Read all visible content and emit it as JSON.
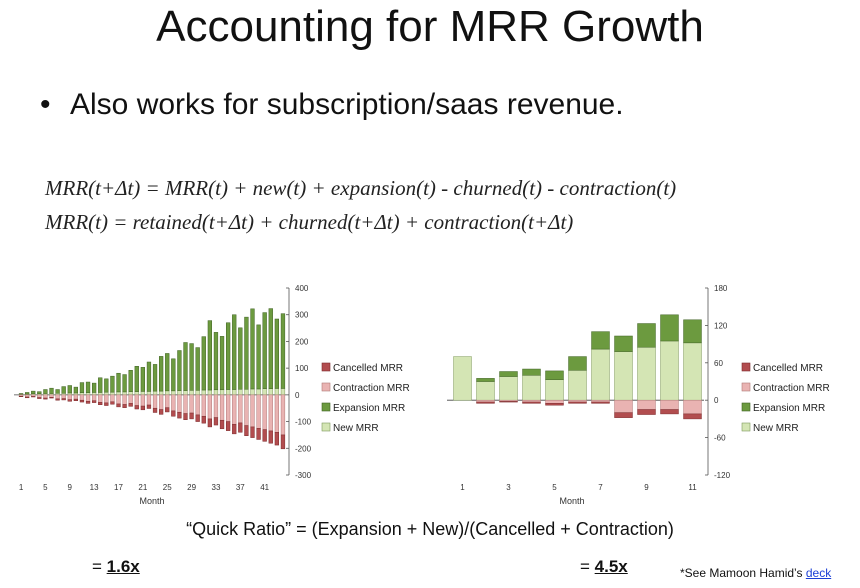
{
  "title": "Accounting for MRR Growth",
  "bullet": {
    "marker": "•",
    "text": "Also works for subscription/saas revenue."
  },
  "formulas": [
    "MRR(t+Δt) = MRR(t) + new(t) + expansion(t) - churned(t) - contraction(t)",
    "MRR(t) = retained(t+Δt) + churned(t+Δt) + contraction(t+Δt)"
  ],
  "quick_ratio_text": "“Quick Ratio” = (Expansion + New)/(Cancelled + Contraction)",
  "ratio_left": {
    "prefix": "= ",
    "value": "1.6x"
  },
  "ratio_right": {
    "prefix": "= ",
    "value": "4.5x"
  },
  "footnote": {
    "text": "*See Mamoon Hamid’s ",
    "link": "deck"
  },
  "colors": {
    "cancelled": "#b24d4f",
    "contraction": "#e9b3b2",
    "expansion": "#6c9a3f",
    "new": "#d4e5b4"
  },
  "chart_data": [
    {
      "type": "bar",
      "stacked": true,
      "xlabel": "Month",
      "ylabel": "",
      "ylim": [
        -300,
        400
      ],
      "yticks": [
        400,
        300,
        200,
        100,
        0,
        -100,
        -200,
        -300
      ],
      "xticks": [
        "1",
        "5",
        "9",
        "13",
        "17",
        "21",
        "25",
        "29",
        "33",
        "37",
        "41"
      ],
      "legend": [
        "Cancelled MRR",
        "Contraction MRR",
        "Expansion MRR",
        "New MRR"
      ],
      "legend_position": "right",
      "x": [
        1,
        2,
        3,
        4,
        5,
        6,
        7,
        8,
        9,
        10,
        11,
        12,
        13,
        14,
        15,
        16,
        17,
        18,
        19,
        20,
        21,
        22,
        23,
        24,
        25,
        26,
        27,
        28,
        29,
        30,
        31,
        32,
        33,
        34,
        35,
        36,
        37,
        38,
        39,
        40,
        41,
        42,
        43,
        44
      ],
      "series": [
        {
          "name": "New MRR",
          "values": [
            3,
            3,
            4,
            4,
            5,
            5,
            6,
            6,
            7,
            7,
            8,
            8,
            9,
            9,
            10,
            10,
            11,
            11,
            12,
            12,
            13,
            13,
            14,
            14,
            15,
            15,
            16,
            16,
            17,
            17,
            18,
            18,
            19,
            19,
            20,
            20,
            21,
            21,
            22,
            22,
            23,
            23,
            24,
            24
          ]
        },
        {
          "name": "Expansion MRR",
          "values": [
            2,
            6,
            10,
            8,
            15,
            20,
            14,
            25,
            28,
            22,
            38,
            40,
            35,
            55,
            50,
            60,
            70,
            65,
            80,
            95,
            90,
            110,
            100,
            130,
            140,
            120,
            150,
            180,
            175,
            160,
            200,
            260,
            215,
            200,
            250,
            280,
            230,
            270,
            300,
            240,
            285,
            300,
            260,
            280
          ]
        },
        {
          "name": "Contraction MRR",
          "values": [
            -5,
            -8,
            -6,
            -10,
            -12,
            -9,
            -15,
            -14,
            -18,
            -16,
            -20,
            -24,
            -22,
            -28,
            -30,
            -26,
            -34,
            -36,
            -32,
            -40,
            -42,
            -38,
            -50,
            -55,
            -48,
            -60,
            -65,
            -70,
            -68,
            -75,
            -80,
            -90,
            -85,
            -95,
            -100,
            -110,
            -105,
            -115,
            -120,
            -125,
            -130,
            -135,
            -140,
            -150
          ]
        },
        {
          "name": "Cancelled MRR",
          "values": [
            -2,
            -3,
            -2,
            -4,
            -4,
            -3,
            -5,
            -5,
            -6,
            -6,
            -7,
            -8,
            -7,
            -9,
            -10,
            -9,
            -11,
            -12,
            -11,
            -13,
            -14,
            -13,
            -16,
            -18,
            -16,
            -20,
            -22,
            -23,
            -22,
            -25,
            -26,
            -30,
            -28,
            -32,
            -34,
            -36,
            -35,
            -38,
            -40,
            -42,
            -44,
            -46,
            -48,
            -52
          ]
        }
      ]
    },
    {
      "type": "bar",
      "stacked": true,
      "xlabel": "Month",
      "ylabel": "",
      "ylim": [
        -120,
        180
      ],
      "yticks": [
        180,
        120,
        60,
        0,
        -60,
        -120
      ],
      "xticks": [
        "1",
        "3",
        "5",
        "7",
        "9",
        "11"
      ],
      "legend": [
        "Cancelled MRR",
        "Contraction MRR",
        "Expansion MRR",
        "New MRR"
      ],
      "legend_position": "right",
      "x": [
        1,
        2,
        3,
        4,
        5,
        6,
        7,
        8,
        9,
        10,
        11
      ],
      "series": [
        {
          "name": "New MRR",
          "values": [
            70,
            30,
            38,
            40,
            33,
            48,
            82,
            78,
            85,
            95,
            92
          ]
        },
        {
          "name": "Expansion MRR",
          "values": [
            0,
            5,
            8,
            10,
            14,
            22,
            28,
            25,
            38,
            42,
            37
          ]
        },
        {
          "name": "Contraction MRR",
          "values": [
            0,
            -3,
            -2,
            -3,
            -5,
            -3,
            -3,
            -20,
            -15,
            -15,
            -22
          ]
        },
        {
          "name": "Cancelled MRR",
          "values": [
            0,
            -2,
            -1,
            -2,
            -3,
            -2,
            -2,
            -8,
            -8,
            -7,
            -8
          ]
        }
      ]
    }
  ]
}
